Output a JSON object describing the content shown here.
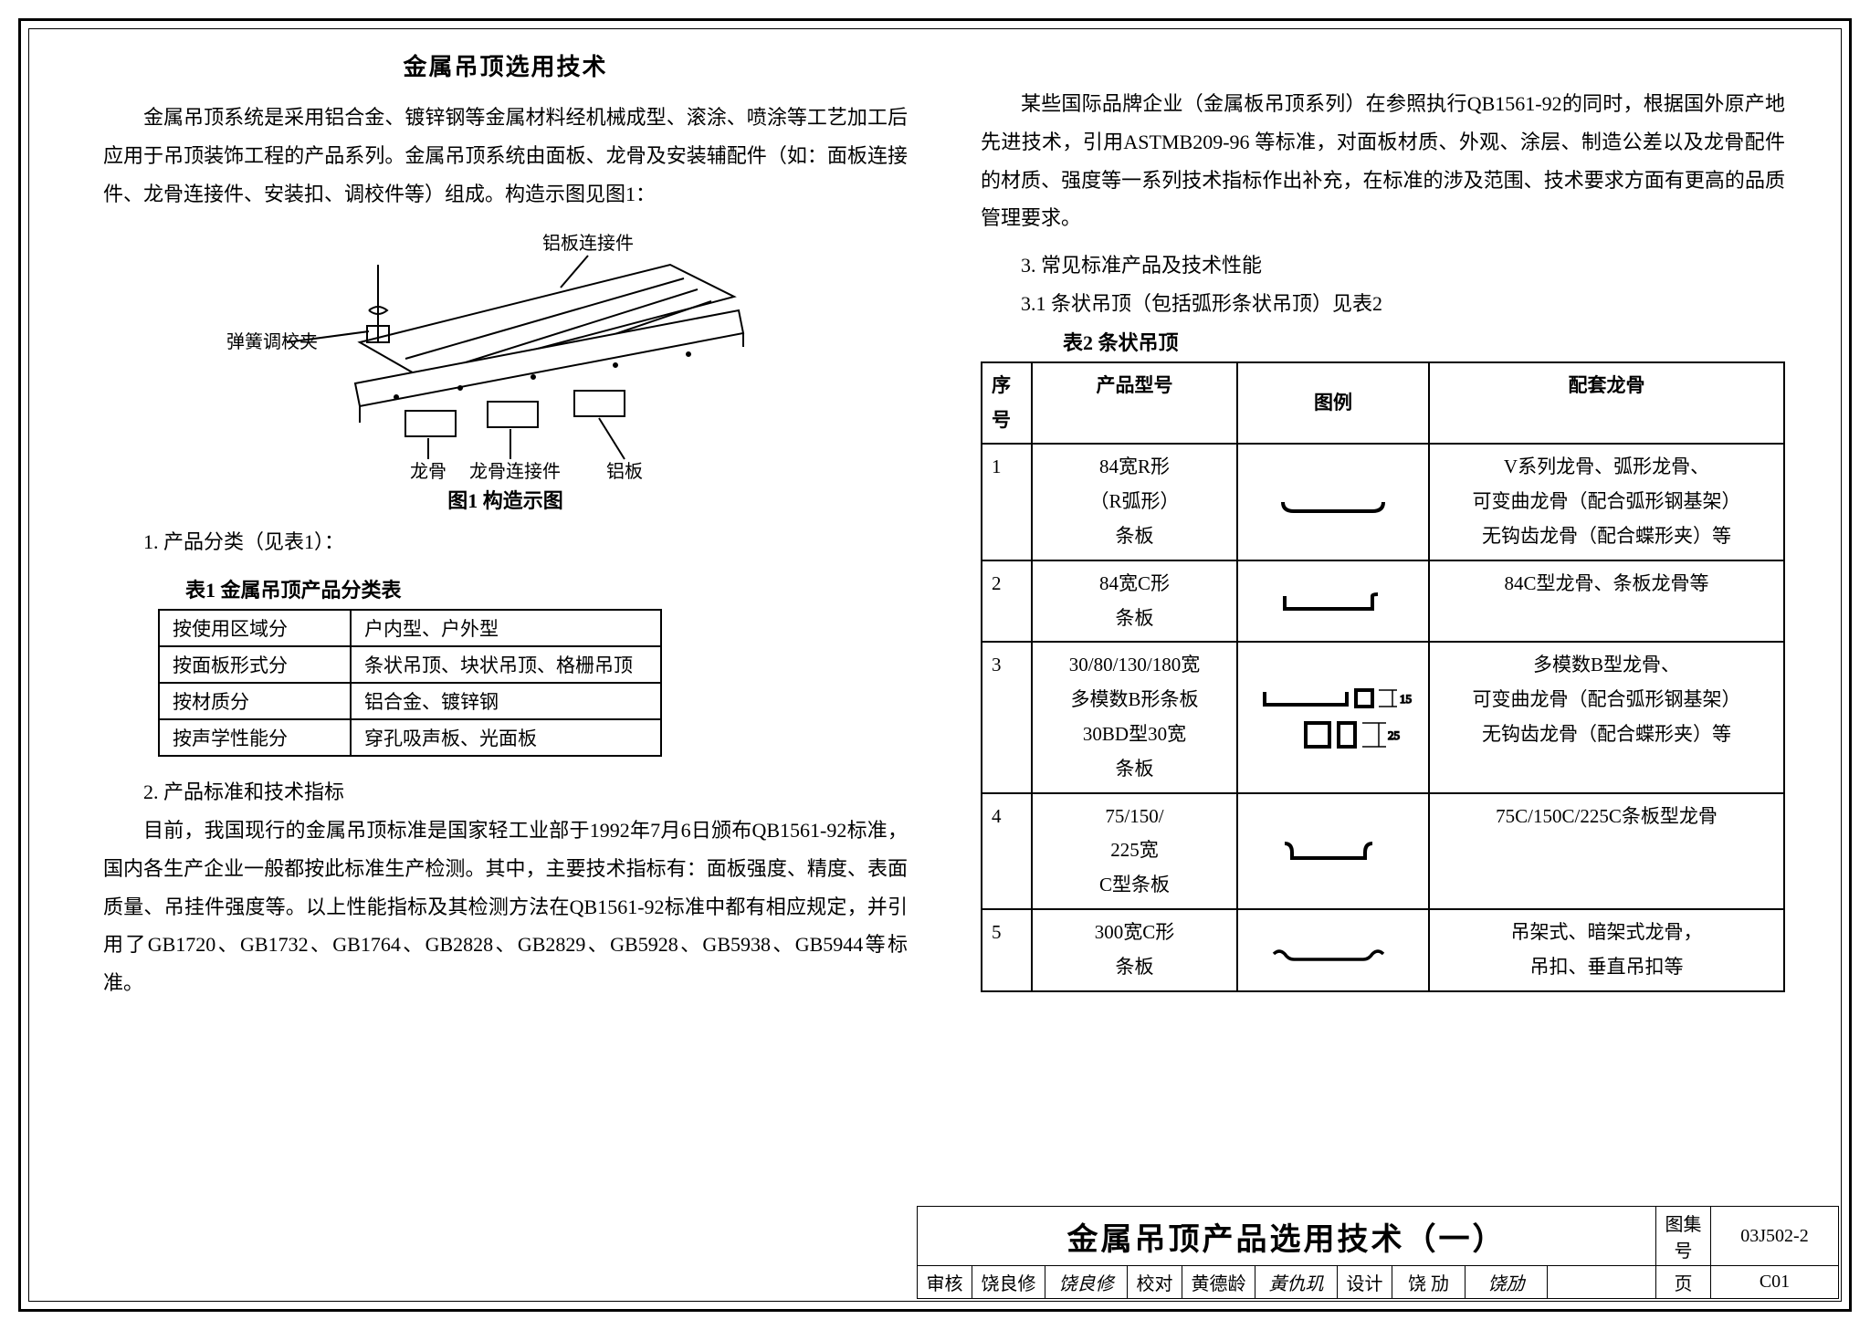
{
  "left": {
    "title": "金属吊顶选用技术",
    "intro": "金属吊顶系统是采用铝合金、镀锌钢等金属材料经机械成型、滚涂、喷涂等工艺加工后应用于吊顶装饰工程的产品系列。金属吊顶系统由面板、龙骨及安装辅配件（如：面板连接件、龙骨连接件、安装扣、调校件等）组成。构造示图见图1：",
    "fig1": {
      "label_top": "铝板连接件",
      "label_left": "弹簧调校夹",
      "label_b1": "龙骨",
      "label_b2": "龙骨连接件",
      "label_b3": "铝板",
      "caption": "图1 构造示图"
    },
    "sec1_heading": "1. 产品分类（见表1）：",
    "t1_caption": "表1 金属吊顶产品分类表",
    "t1": {
      "rows": [
        [
          "按使用区域分",
          "户内型、户外型"
        ],
        [
          "按面板形式分",
          "条状吊顶、块状吊顶、格栅吊顶"
        ],
        [
          "按材质分",
          "铝合金、镀锌钢"
        ],
        [
          "按声学性能分",
          "穿孔吸声板、光面板"
        ]
      ]
    },
    "sec2_heading": "2. 产品标准和技术指标",
    "sec2_body": "目前，我国现行的金属吊顶标准是国家轻工业部于1992年7月6日颁布QB1561-92标准，国内各生产企业一般都按此标准生产检测。其中，主要技术指标有：面板强度、精度、表面质量、吊挂件强度等。以上性能指标及其检测方法在QB1561-92标准中都有相应规定，并引用了GB1720、GB1732、GB1764、GB2828、GB2829、GB5928、GB5938、GB5944等标准。"
  },
  "right": {
    "para1": "某些国际品牌企业（金属板吊顶系列）在参照执行QB1561-92的同时，根据国外原产地先进技术，引用ASTMB209-96 等标准，对面板材质、外观、涂层、制造公差以及龙骨配件的材质、强度等一系列技术指标作出补充，在标准的涉及范围、技术要求方面有更高的品质管理要求。",
    "sec3_heading": "3. 常见标准产品及技术性能",
    "sec31_heading": "3.1 条状吊顶（包括弧形条状吊顶）见表2",
    "t2_caption": "表2 条状吊顶",
    "t2": {
      "headers": [
        "序号",
        "产品型号",
        "图例",
        "配套龙骨"
      ],
      "rows": [
        {
          "seq": "1",
          "model": "84宽R形\n（R弧形）\n条板",
          "keel": "V系列龙骨、弧形龙骨、\n可变曲龙骨（配合弧形钢基架）\n无钩齿龙骨（配合蝶形夹）等"
        },
        {
          "seq": "2",
          "model": "84宽C形\n条板",
          "keel": "84C型龙骨、条板龙骨等"
        },
        {
          "seq": "3",
          "model": "30/80/130/180宽\n多模数B形条板\n30BD型30宽\n条板",
          "keel": "多模数B型龙骨、\n可变曲龙骨（配合弧形钢基架）\n无钩齿龙骨（配合蝶形夹）等"
        },
        {
          "seq": "4",
          "model": "75/150/\n225宽\nC型条板",
          "keel": "75C/150C/225C条板型龙骨"
        },
        {
          "seq": "5",
          "model": "300宽C形\n条板",
          "keel": "吊架式、暗架式龙骨，\n吊扣、垂直吊扣等"
        }
      ]
    }
  },
  "titleblock": {
    "main": "金属吊顶产品选用技术（一）",
    "drawing_no_label": "图集号",
    "drawing_no": "03J502-2",
    "review_lbl": "审核",
    "reviewer": "饶良修",
    "proof_lbl": "校对",
    "proofer": "黄德龄",
    "design_lbl": "设计",
    "designer": "饶 劢",
    "page_lbl": "页",
    "page_no": "C01"
  }
}
